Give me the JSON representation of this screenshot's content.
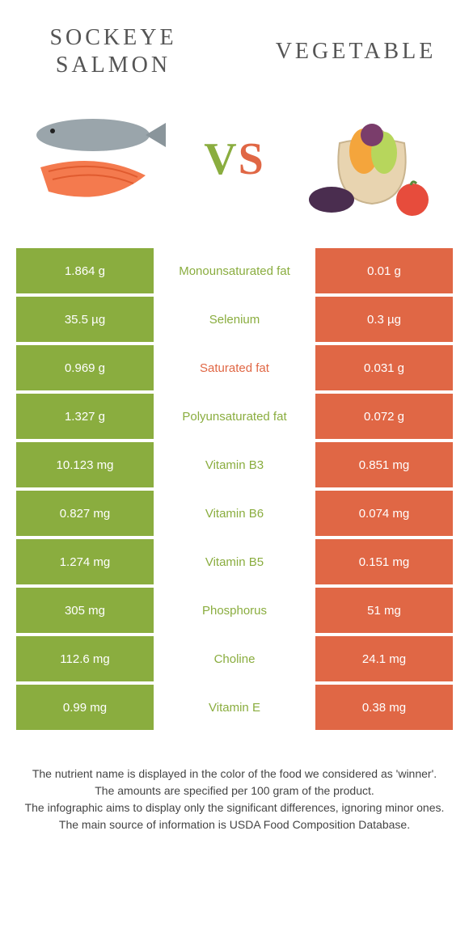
{
  "header": {
    "left_title": "Sockeye salmon",
    "right_title": "Vegetable",
    "vs_v": "V",
    "vs_s": "S"
  },
  "colors": {
    "left": "#8aad3f",
    "right": "#e06745"
  },
  "rows": [
    {
      "left": "1.864 g",
      "label": "Monounsaturated fat",
      "right": "0.01 g",
      "winner": "left"
    },
    {
      "left": "35.5 µg",
      "label": "Selenium",
      "right": "0.3 µg",
      "winner": "left"
    },
    {
      "left": "0.969 g",
      "label": "Saturated fat",
      "right": "0.031 g",
      "winner": "right"
    },
    {
      "left": "1.327 g",
      "label": "Polyunsaturated fat",
      "right": "0.072 g",
      "winner": "left"
    },
    {
      "left": "10.123 mg",
      "label": "Vitamin B3",
      "right": "0.851 mg",
      "winner": "left"
    },
    {
      "left": "0.827 mg",
      "label": "Vitamin B6",
      "right": "0.074 mg",
      "winner": "left"
    },
    {
      "left": "1.274 mg",
      "label": "Vitamin B5",
      "right": "0.151 mg",
      "winner": "left"
    },
    {
      "left": "305 mg",
      "label": "Phosphorus",
      "right": "51 mg",
      "winner": "left"
    },
    {
      "left": "112.6 mg",
      "label": "Choline",
      "right": "24.1 mg",
      "winner": "left"
    },
    {
      "left": "0.99 mg",
      "label": "Vitamin E",
      "right": "0.38 mg",
      "winner": "left"
    }
  ],
  "footnotes": [
    "The nutrient name is displayed in the color of the food we considered as 'winner'.",
    "The amounts are specified per 100 gram of the product.",
    "The infographic aims to display only the significant differences, ignoring minor ones.",
    "The main source of information is USDA Food Composition Database."
  ]
}
